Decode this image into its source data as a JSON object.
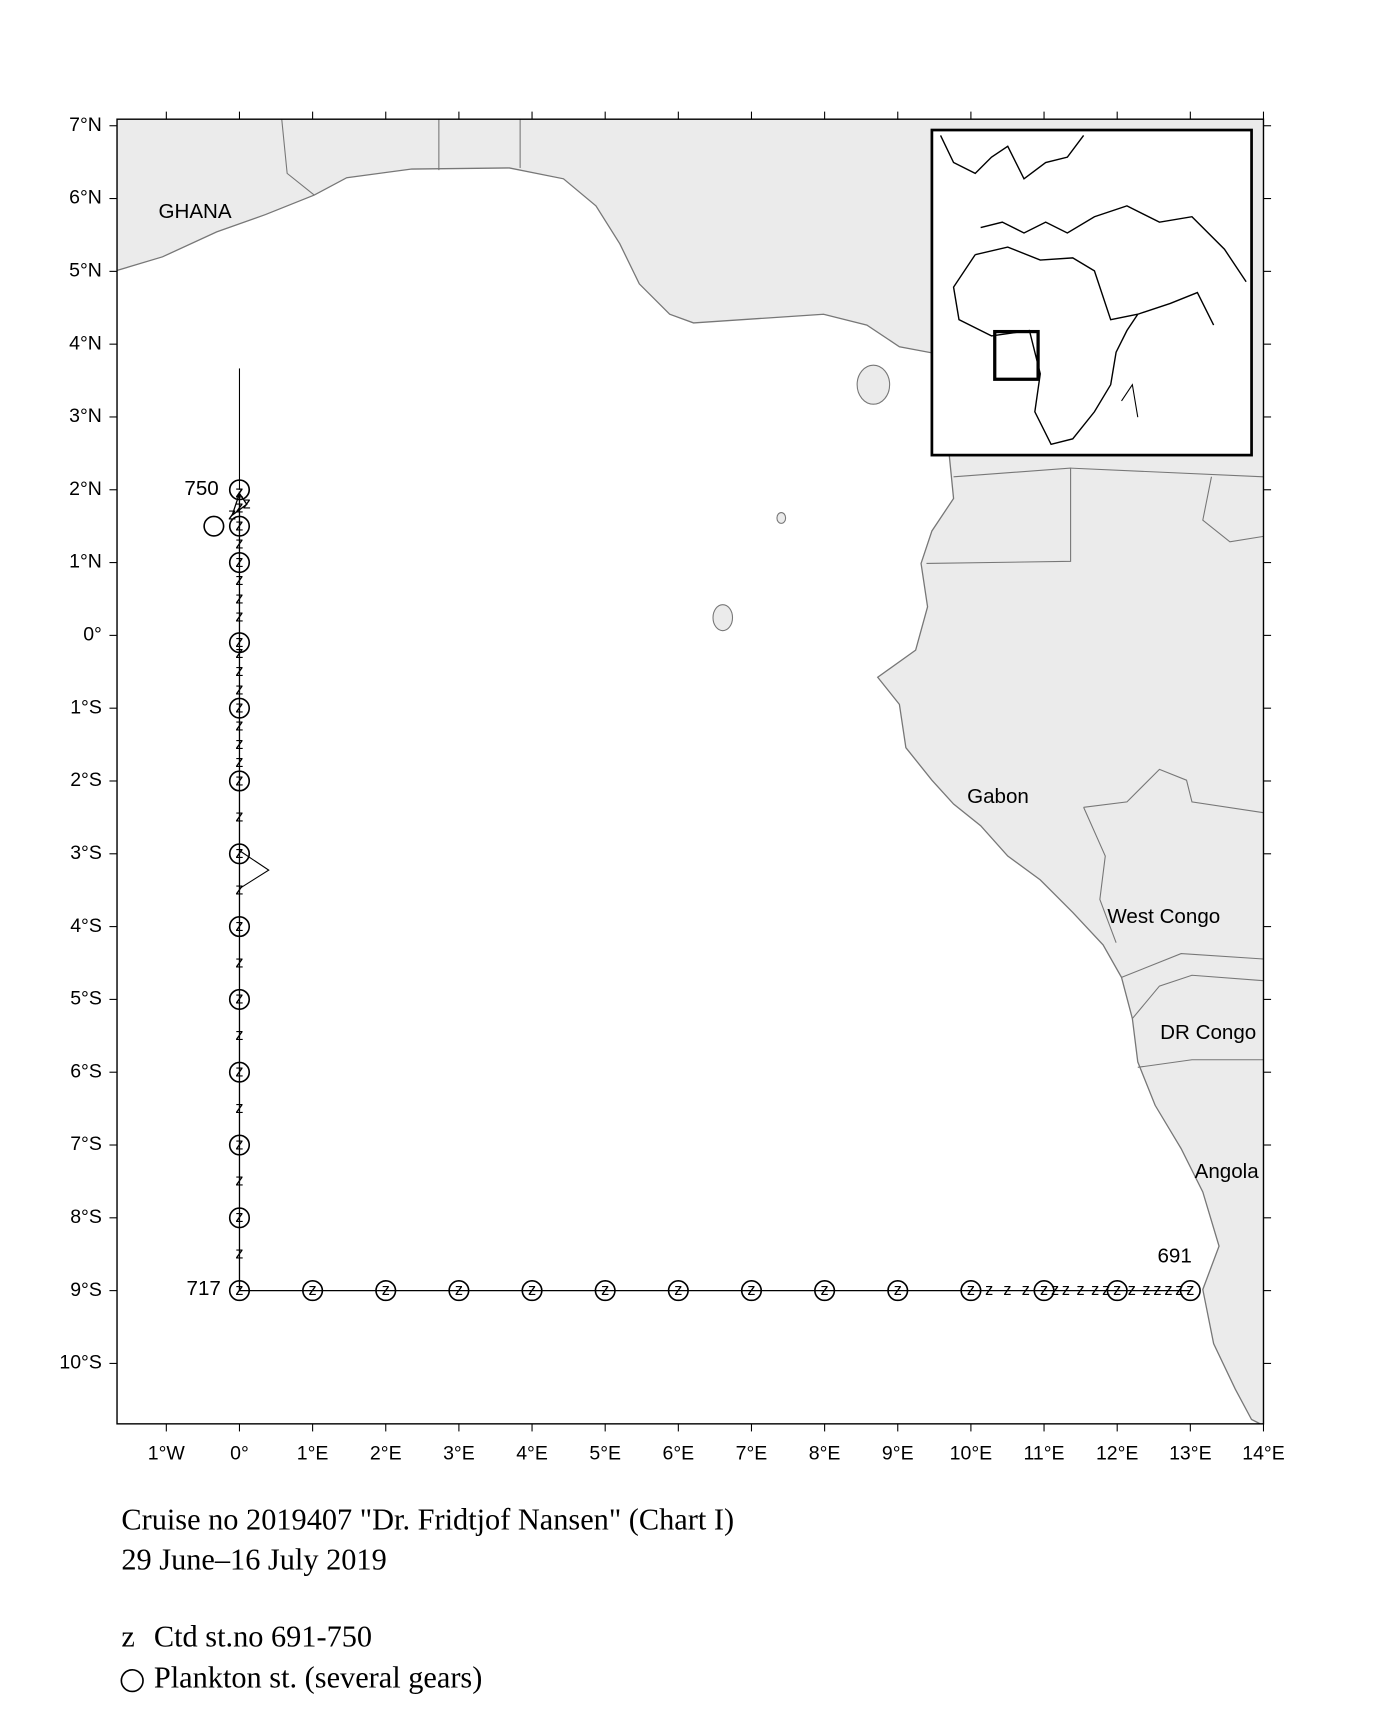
{
  "chart_data": {
    "type": "map",
    "title": "Cruise no 2019407  \"Dr. Fridtjof Nansen\" (Chart I)",
    "subtitle": "29 June–16 July 2019",
    "xlim": [
      -1.674,
      14
    ],
    "ylim": [
      -10.83,
      7.09
    ],
    "xticks": [
      {
        "value": -1,
        "label": "1°W"
      },
      {
        "value": 0,
        "label": "0°"
      },
      {
        "value": 1,
        "label": "1°E"
      },
      {
        "value": 2,
        "label": "2°E"
      },
      {
        "value": 3,
        "label": "3°E"
      },
      {
        "value": 4,
        "label": "4°E"
      },
      {
        "value": 5,
        "label": "5°E"
      },
      {
        "value": 6,
        "label": "6°E"
      },
      {
        "value": 7,
        "label": "7°E"
      },
      {
        "value": 8,
        "label": "8°E"
      },
      {
        "value": 9,
        "label": "9°E"
      },
      {
        "value": 10,
        "label": "10°E"
      },
      {
        "value": 11,
        "label": "11°E"
      },
      {
        "value": 12,
        "label": "12°E"
      },
      {
        "value": 13,
        "label": "13°E"
      },
      {
        "value": 14,
        "label": "14°E"
      }
    ],
    "yticks": [
      {
        "value": 7,
        "label": "7°N"
      },
      {
        "value": 6,
        "label": "6°N"
      },
      {
        "value": 5,
        "label": "5°N"
      },
      {
        "value": 4,
        "label": "4°N"
      },
      {
        "value": 3,
        "label": "3°N"
      },
      {
        "value": 2,
        "label": "2°N"
      },
      {
        "value": 1,
        "label": "1°N"
      },
      {
        "value": 0,
        "label": "0°"
      },
      {
        "value": -1,
        "label": "1°S"
      },
      {
        "value": -2,
        "label": "2°S"
      },
      {
        "value": -3,
        "label": "3°S"
      },
      {
        "value": -4,
        "label": "4°S"
      },
      {
        "value": -5,
        "label": "5°S"
      },
      {
        "value": -6,
        "label": "6°S"
      },
      {
        "value": -7,
        "label": "7°S"
      },
      {
        "value": -8,
        "label": "8°S"
      },
      {
        "value": -9,
        "label": "9°S"
      },
      {
        "value": -10,
        "label": "10°S"
      }
    ],
    "series": [
      {
        "name": "Ctd st.no 691-750",
        "marker": "z",
        "color": "#000000",
        "x": [
          13,
          12.85,
          12.7,
          12.55,
          12.4,
          12.2,
          12,
          11.85,
          11.7,
          11.5,
          11.3,
          11.15,
          11,
          10.75,
          10.5,
          10.25,
          10,
          9,
          8,
          7,
          6,
          5,
          4,
          3,
          2,
          1,
          0,
          0,
          0,
          0,
          0,
          0,
          0,
          0,
          0,
          0,
          0,
          0,
          0,
          0,
          0,
          0,
          0,
          0,
          0,
          0,
          0,
          0,
          0,
          0,
          0,
          0,
          0,
          0,
          0,
          0,
          0,
          0.1,
          -0.1,
          0
        ],
        "values": [
          -9,
          -9,
          -9,
          -9,
          -9,
          -9,
          -9,
          -9,
          -9,
          -9,
          -9,
          -9,
          -9,
          -9,
          -9,
          -9,
          -9,
          -9,
          -9,
          -9,
          -9,
          -9,
          -9,
          -9,
          -9,
          -9,
          -9,
          -8.5,
          -8,
          -7.5,
          -7,
          -6.5,
          -6,
          -5.5,
          -5,
          -4.5,
          -4,
          -3.5,
          -3,
          -2.5,
          -2,
          -1.75,
          -1.5,
          -1.25,
          -1,
          -0.75,
          -0.5,
          -0.25,
          -0.1,
          0.25,
          0.5,
          0.75,
          1,
          1.25,
          1.5,
          1.75,
          1.95,
          1.8,
          1.65,
          1.95
        ]
      },
      {
        "name": "Plankton st. (several gears)",
        "color": "#000000",
        "x": [
          0,
          0,
          0,
          0,
          0,
          0,
          0,
          0,
          0,
          0,
          0,
          0,
          0,
          -0.35,
          1,
          2,
          3,
          4,
          5,
          6,
          7,
          8,
          9,
          10,
          11,
          12,
          13
        ],
        "values": [
          2,
          1.5,
          1,
          -0.1,
          -1,
          -2,
          -3,
          -4,
          -5,
          -6,
          -7,
          -8,
          -9,
          1.5,
          -9,
          -9,
          -9,
          -9,
          -9,
          -9,
          -9,
          -9,
          -9,
          -9,
          -9,
          -9,
          -9
        ]
      }
    ],
    "annotations": [
      "GHANA",
      "Gabon",
      "West Congo",
      "DR Congo",
      "Angola",
      "750",
      "717",
      "691"
    ]
  }
}
